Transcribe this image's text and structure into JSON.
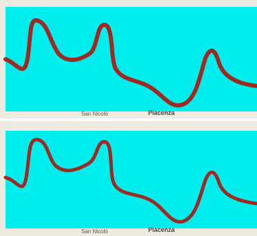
{
  "panels": [
    {
      "labels": [
        "San Nicolò",
        "Piacenza"
      ]
    },
    {
      "labels": [
        "San Nicolò",
        "Piacenza"
      ]
    }
  ]
}
